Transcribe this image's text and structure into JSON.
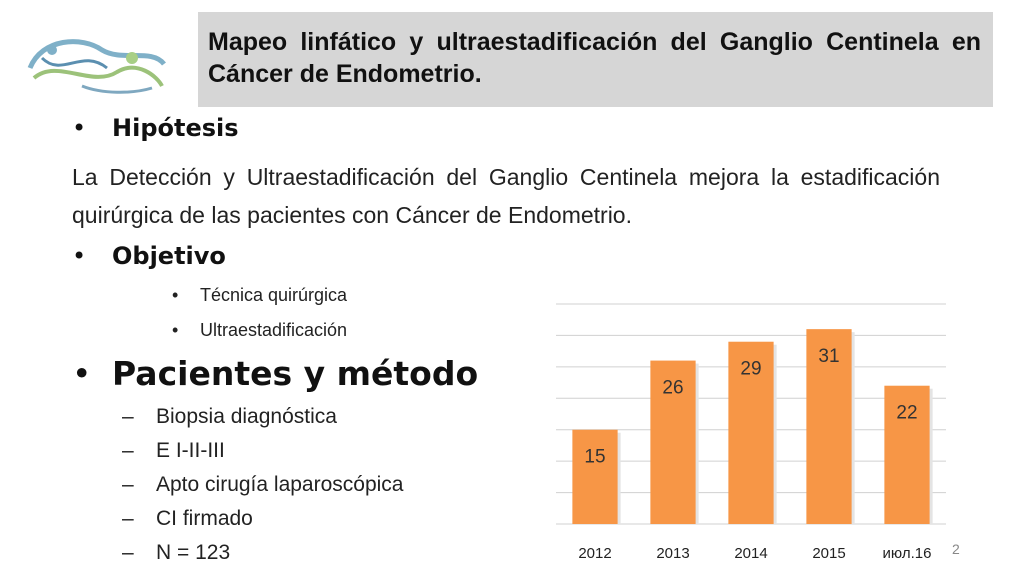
{
  "title": "Mapeo linfático y ultraestadificación del Ganglio Centinela en Cáncer de Endometrio.",
  "bullet_glyph": "•",
  "dash_glyph": "–",
  "sections": {
    "hipotesis_heading": "Hipótesis",
    "hipotesis_text": "La Detección y Ultraestadificación del Ganglio Centinela mejora la estadificación quirúrgica de las pacientes con Cáncer de Endometrio.",
    "objetivo_heading": "Objetivo",
    "objetivo_items": [
      "Técnica quirúrgica",
      "Ultraestadificación"
    ],
    "pacientes_heading": "Pacientes y método",
    "pacientes_items": [
      "Biopsia diagnóstica",
      "E I-II-III",
      "Apto cirugía laparoscópica",
      "CI firmado",
      "N = 123"
    ]
  },
  "page_number": "2",
  "colors": {
    "bar": "#f79646",
    "title_bg": "#d6d6d6",
    "grid": "#d0d0d0"
  },
  "chart_data": {
    "type": "bar",
    "categories": [
      "2012",
      "2013",
      "2014",
      "2015",
      "июл.16"
    ],
    "values": [
      15,
      26,
      29,
      31,
      22
    ],
    "ylim": [
      0,
      35
    ],
    "grid": true,
    "data_labels": true
  }
}
